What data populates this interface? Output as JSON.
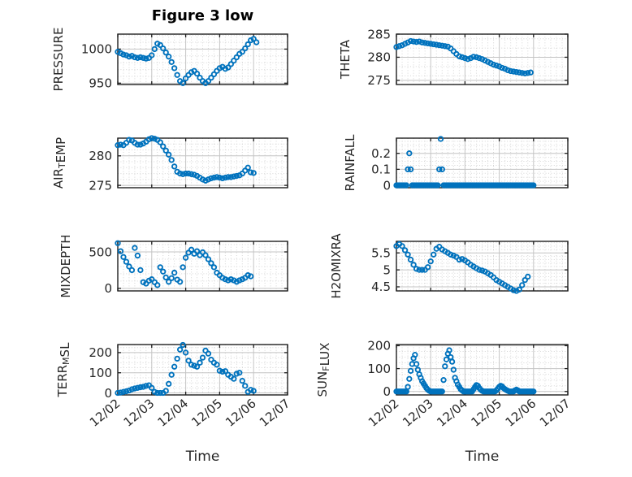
{
  "title": "Figure 3 low",
  "xlabel": "Time",
  "colors": {
    "marker": "#0072BD",
    "axis": "#1f1f1f",
    "major_grid": "#c4c4c4",
    "minor_grid": "#d6d6d6",
    "text": "#262626",
    "title_text": "#000000",
    "background": "#ffffff"
  },
  "x_axis": {
    "lim": [
      0,
      5
    ],
    "tick_values": [
      0,
      1,
      2,
      3,
      4,
      5
    ],
    "tick_labels": [
      "12/02",
      "12/03",
      "12/04",
      "12/05",
      "12/06",
      "12/07"
    ],
    "minor_step_days": 0.1666667,
    "label": "Time"
  },
  "chart_data": [
    {
      "name": "PRESSURE",
      "type": "scatter",
      "row": 0,
      "col": 0,
      "ylabel_parts": [
        {
          "text": "PRESSURE",
          "sub": false
        }
      ],
      "ylim": [
        948,
        1022
      ],
      "yticks": [
        950,
        1000
      ],
      "ytick_labels": [
        "950",
        "1000"
      ],
      "y_minor_step": 10,
      "series": {
        "t0": 0,
        "dt": 0.0833333,
        "values": [
          996,
          994,
          992,
          991,
          989,
          990,
          988,
          987,
          988,
          987,
          986,
          987,
          991,
          1000,
          1008,
          1006,
          1001,
          995,
          989,
          981,
          972,
          962,
          953,
          950,
          957,
          962,
          966,
          968,
          964,
          958,
          953,
          950,
          953,
          958,
          963,
          968,
          972,
          974,
          971,
          973,
          978,
          983,
          988,
          993,
          996,
          1001,
          1007,
          1013,
          1015,
          1010
        ]
      }
    },
    {
      "name": "THETA",
      "type": "scatter",
      "row": 0,
      "col": 1,
      "ylabel_parts": [
        {
          "text": "THETA",
          "sub": false
        }
      ],
      "ylim": [
        274.1,
        285.0
      ],
      "yticks": [
        275,
        280,
        285
      ],
      "ytick_labels": [
        "275",
        "280",
        "285"
      ],
      "y_minor_step": 2,
      "series": {
        "t0": 0,
        "dt": 0.0833333,
        "values": [
          282.2,
          282.4,
          282.6,
          282.9,
          283.2,
          283.5,
          283.4,
          283.3,
          283.4,
          283.2,
          283.1,
          283,
          282.9,
          282.8,
          282.7,
          282.6,
          282.5,
          282.4,
          282.3,
          281.9,
          281.3,
          280.7,
          280.2,
          280,
          279.8,
          279.6,
          279.8,
          280.1,
          280,
          279.8,
          279.6,
          279.3,
          279,
          278.7,
          278.4,
          278.2,
          278,
          277.7,
          277.5,
          277.2,
          277,
          276.9,
          276.8,
          276.7,
          276.6,
          276.5,
          276.6,
          276.7
        ]
      }
    },
    {
      "name": "AIR_TEMP",
      "type": "scatter",
      "row": 1,
      "col": 0,
      "ylabel_parts": [
        {
          "text": "AIR",
          "sub": false
        },
        {
          "text": "T",
          "sub": true
        },
        {
          "text": "EMP",
          "sub": false
        }
      ],
      "ylim": [
        274.6,
        283.0
      ],
      "yticks": [
        275,
        280
      ],
      "ytick_labels": [
        "275",
        "280"
      ],
      "y_minor_step": 1,
      "series": {
        "t0": 0,
        "dt": 0.0833333,
        "values": [
          281.8,
          281.9,
          281.8,
          282.2,
          282.7,
          282.6,
          282.2,
          281.9,
          281.9,
          282.1,
          282.4,
          282.8,
          283,
          282.9,
          282.7,
          282.3,
          281.6,
          280.9,
          280.2,
          279.3,
          278.2,
          277.3,
          277,
          276.9,
          277,
          277,
          276.9,
          276.8,
          276.6,
          276.3,
          276,
          275.8,
          276,
          276.2,
          276.3,
          276.4,
          276.3,
          276.2,
          276.3,
          276.4,
          276.4,
          276.5,
          276.6,
          276.7,
          277,
          277.5,
          278,
          277.2,
          277.1
        ]
      }
    },
    {
      "name": "RAINFALL",
      "type": "scatter",
      "row": 1,
      "col": 1,
      "ylabel_parts": [
        {
          "text": "RAINFALL",
          "sub": false
        }
      ],
      "ylim": [
        -0.015,
        0.295
      ],
      "yticks": [
        0,
        0.1,
        0.2
      ],
      "ytick_labels": [
        "0",
        "0.1",
        "0.2"
      ],
      "y_minor_step": 0.025,
      "series": {
        "t0": 0,
        "dt": 0.0416667,
        "values": [
          0,
          0,
          0,
          0,
          0,
          0,
          0,
          0,
          0.1,
          0.2,
          0.1,
          0,
          0,
          0,
          0,
          0,
          0,
          0,
          0,
          0,
          0,
          0,
          0,
          0,
          0,
          0,
          0,
          0,
          0,
          0,
          0.1,
          0.29,
          0.1,
          0,
          0,
          0,
          0,
          0,
          0,
          0,
          0,
          0,
          0,
          0,
          0,
          0,
          0,
          0,
          0,
          0,
          0,
          0,
          0,
          0,
          0,
          0,
          0,
          0,
          0,
          0,
          0,
          0,
          0,
          0,
          0,
          0,
          0,
          0,
          0,
          0,
          0,
          0,
          0,
          0,
          0,
          0,
          0,
          0,
          0,
          0,
          0,
          0,
          0,
          0,
          0,
          0,
          0,
          0,
          0,
          0,
          0,
          0,
          0,
          0,
          0,
          0,
          0
        ]
      }
    },
    {
      "name": "MIXDEPTH",
      "type": "scatter",
      "row": 2,
      "col": 0,
      "ylabel_parts": [
        {
          "text": "MIXDEPTH",
          "sub": false
        }
      ],
      "ylim": [
        -35,
        645
      ],
      "yticks": [
        0,
        500
      ],
      "ytick_labels": [
        "0",
        "500"
      ],
      "y_minor_step": 100,
      "series": {
        "t0": 0,
        "dt": 0.0833333,
        "values": [
          620,
          510,
          430,
          365,
          300,
          250,
          555,
          450,
          250,
          85,
          65,
          105,
          125,
          85,
          45,
          290,
          230,
          150,
          90,
          140,
          215,
          120,
          90,
          290,
          420,
          490,
          530,
          475,
          510,
          455,
          495,
          455,
          400,
          345,
          290,
          215,
          180,
          145,
          125,
          110,
          125,
          110,
          90,
          110,
          125,
          145,
          180,
          165
        ]
      }
    },
    {
      "name": "H2OMIXRA",
      "type": "scatter",
      "row": 2,
      "col": 1,
      "ylabel_parts": [
        {
          "text": "H2OMIXRA",
          "sub": false
        }
      ],
      "ylim": [
        4.38,
        5.84
      ],
      "yticks": [
        4.5,
        5,
        5.5
      ],
      "ytick_labels": [
        "4.5",
        "5",
        "5.5"
      ],
      "y_minor_step": 0.1,
      "series": {
        "t0": 0,
        "dt": 0.0833333,
        "values": [
          5.7,
          5.76,
          5.7,
          5.58,
          5.45,
          5.3,
          5.15,
          5.03,
          5,
          5,
          5,
          5.08,
          5.25,
          5.45,
          5.62,
          5.68,
          5.6,
          5.55,
          5.5,
          5.45,
          5.42,
          5.38,
          5.3,
          5.32,
          5.28,
          5.22,
          5.15,
          5.1,
          5.05,
          5,
          4.98,
          4.95,
          4.9,
          4.85,
          4.78,
          4.7,
          4.65,
          4.6,
          4.55,
          4.5,
          4.45,
          4.4,
          4.38,
          4.42,
          4.55,
          4.7,
          4.8
        ]
      }
    },
    {
      "name": "TERR_M_SL",
      "type": "scatter",
      "row": 3,
      "col": 0,
      "ylabel_parts": [
        {
          "text": "TERR",
          "sub": false
        },
        {
          "text": "M",
          "sub": true
        },
        {
          "text": "SL",
          "sub": false
        }
      ],
      "ylim": [
        -10,
        240
      ],
      "yticks": [
        0,
        100,
        200
      ],
      "ytick_labels": [
        "0",
        "100",
        "200"
      ],
      "y_minor_step": 25,
      "series": {
        "t0": 0,
        "dt": 0.0833333,
        "values": [
          0,
          2,
          5,
          8,
          12,
          18,
          22,
          25,
          28,
          30,
          35,
          38,
          25,
          5,
          0,
          0,
          0,
          10,
          45,
          90,
          130,
          170,
          215,
          238,
          200,
          160,
          140,
          135,
          130,
          150,
          175,
          210,
          195,
          165,
          150,
          140,
          110,
          105,
          108,
          90,
          80,
          70,
          95,
          100,
          60,
          35,
          5,
          15,
          10
        ]
      }
    },
    {
      "name": "SUN_FLUX",
      "type": "scatter",
      "row": 3,
      "col": 1,
      "ylabel_parts": [
        {
          "text": "SUN",
          "sub": false
        },
        {
          "text": "F",
          "sub": true
        },
        {
          "text": "LUX",
          "sub": false
        }
      ],
      "ylim": [
        -15,
        205
      ],
      "yticks": [
        0,
        100,
        200
      ],
      "ytick_labels": [
        "0",
        "100",
        "200"
      ],
      "y_minor_step": 25,
      "series": {
        "t0": 0,
        "dt": 0.0416667,
        "values": [
          0,
          0,
          0,
          0,
          0,
          0,
          0,
          0,
          20,
          55,
          90,
          120,
          145,
          160,
          120,
          95,
          75,
          60,
          45,
          35,
          25,
          15,
          8,
          3,
          0,
          0,
          0,
          0,
          0,
          0,
          0,
          0,
          0,
          50,
          110,
          140,
          165,
          180,
          150,
          130,
          95,
          60,
          45,
          30,
          20,
          10,
          5,
          0,
          0,
          0,
          0,
          0,
          0,
          0,
          10,
          20,
          28,
          25,
          15,
          8,
          3,
          0,
          0,
          0,
          0,
          0,
          0,
          0,
          0,
          0,
          5,
          12,
          20,
          25,
          22,
          15,
          10,
          6,
          3,
          0,
          0,
          0,
          0,
          5,
          8,
          5,
          0,
          0,
          0,
          0,
          0,
          0,
          0,
          0,
          0,
          0,
          0
        ]
      }
    }
  ]
}
